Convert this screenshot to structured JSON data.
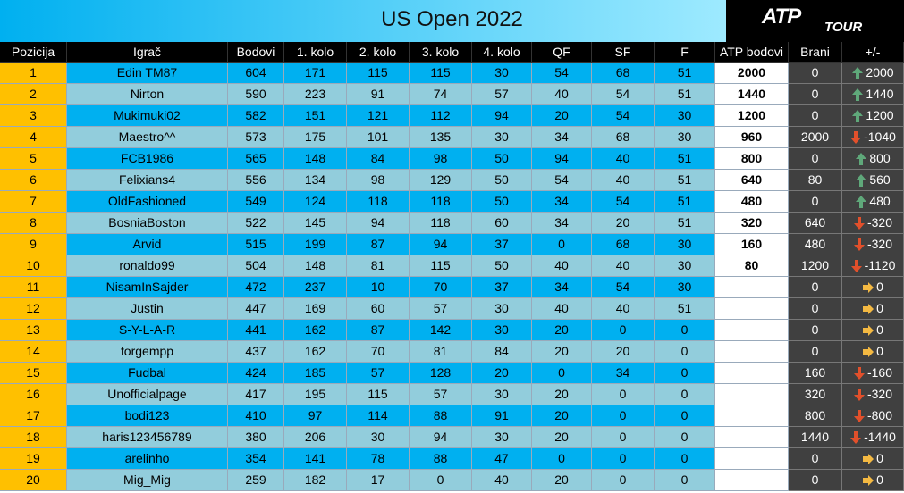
{
  "header": {
    "title": "US Open 2022",
    "logo": {
      "main": "ATP",
      "sub": "TOUR"
    }
  },
  "table": {
    "columns": [
      "Pozicija",
      "Igrač",
      "Bodovi",
      "1. kolo",
      "2. kolo",
      "3. kolo",
      "4. kolo",
      "QF",
      "SF",
      "F",
      "ATP bodovi",
      "Brani",
      "+/-"
    ],
    "rows": [
      [
        1,
        "Edin TM87",
        604,
        171,
        115,
        115,
        30,
        54,
        68,
        51,
        2000,
        0,
        2000
      ],
      [
        2,
        "Nirton",
        590,
        223,
        91,
        74,
        57,
        40,
        54,
        51,
        1440,
        0,
        1440
      ],
      [
        3,
        "Mukimuki02",
        582,
        151,
        121,
        112,
        94,
        20,
        54,
        30,
        1200,
        0,
        1200
      ],
      [
        4,
        "Maestro^^",
        573,
        175,
        101,
        135,
        30,
        34,
        68,
        30,
        960,
        2000,
        -1040
      ],
      [
        5,
        "FCB1986",
        565,
        148,
        84,
        98,
        50,
        94,
        40,
        51,
        800,
        0,
        800
      ],
      [
        6,
        "Felixians4",
        556,
        134,
        98,
        129,
        50,
        54,
        40,
        51,
        640,
        80,
        560
      ],
      [
        7,
        "OldFashioned",
        549,
        124,
        118,
        118,
        50,
        34,
        54,
        51,
        480,
        0,
        480
      ],
      [
        8,
        "BosniaBoston",
        522,
        145,
        94,
        118,
        60,
        34,
        20,
        51,
        320,
        640,
        -320
      ],
      [
        9,
        "Arvid",
        515,
        199,
        87,
        94,
        37,
        0,
        68,
        30,
        160,
        480,
        -320
      ],
      [
        10,
        "ronaldo99",
        504,
        148,
        81,
        115,
        50,
        40,
        40,
        30,
        80,
        1200,
        -1120
      ],
      [
        11,
        "NisamInSajder",
        472,
        237,
        10,
        70,
        37,
        34,
        54,
        30,
        null,
        0,
        0
      ],
      [
        12,
        "Justin",
        447,
        169,
        60,
        57,
        30,
        40,
        40,
        51,
        null,
        0,
        0
      ],
      [
        13,
        "S-Y-L-A-R",
        441,
        162,
        87,
        142,
        30,
        20,
        0,
        0,
        null,
        0,
        0
      ],
      [
        14,
        "forgempp",
        437,
        162,
        70,
        81,
        84,
        20,
        20,
        0,
        null,
        0,
        0
      ],
      [
        15,
        "Fudbal",
        424,
        185,
        57,
        128,
        20,
        0,
        34,
        0,
        null,
        160,
        -160
      ],
      [
        16,
        "Unofficialpage",
        417,
        195,
        115,
        57,
        30,
        20,
        0,
        0,
        null,
        320,
        -320
      ],
      [
        17,
        "bodi123",
        410,
        97,
        114,
        88,
        91,
        20,
        0,
        0,
        null,
        800,
        -800
      ],
      [
        18,
        "haris123456789",
        380,
        206,
        30,
        94,
        30,
        20,
        0,
        0,
        null,
        1440,
        -1440
      ],
      [
        19,
        "arelinho",
        354,
        141,
        78,
        88,
        47,
        0,
        0,
        0,
        null,
        0,
        0
      ],
      [
        20,
        "Mig_Mig",
        259,
        182,
        17,
        0,
        40,
        20,
        0,
        0,
        null,
        0,
        0
      ]
    ]
  }
}
